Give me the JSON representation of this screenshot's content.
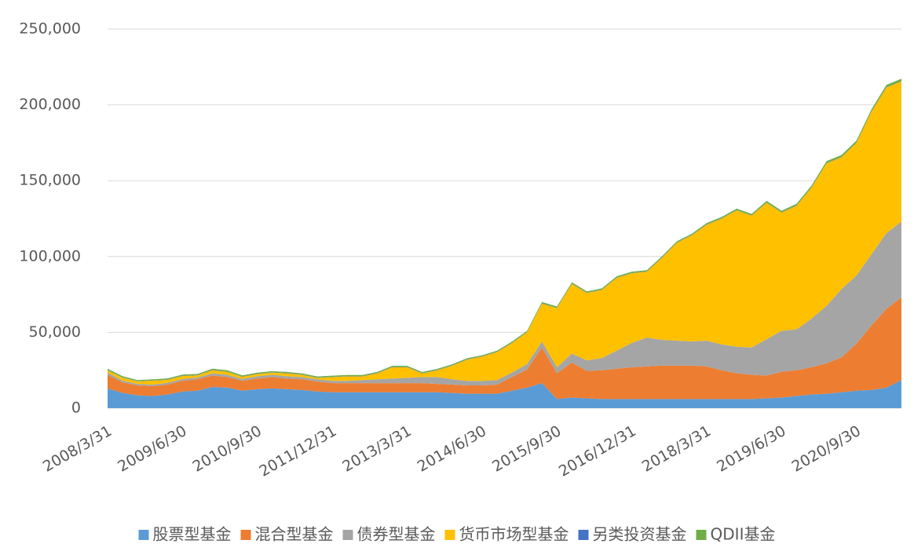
{
  "chart_data": {
    "type": "stacked_area",
    "categories": [
      "2008/3/31",
      null,
      null,
      null,
      null,
      "2009/6/30",
      null,
      null,
      null,
      null,
      "2010/9/30",
      null,
      null,
      null,
      null,
      "2011/12/31",
      null,
      null,
      null,
      null,
      "2013/3/31",
      null,
      null,
      null,
      null,
      "2014/6/30",
      null,
      null,
      null,
      null,
      "2015/9/30",
      null,
      null,
      null,
      null,
      "2016/12/31",
      null,
      null,
      null,
      null,
      "2018/3/31",
      null,
      null,
      null,
      null,
      "2019/6/30",
      null,
      null,
      null,
      null,
      "2020/9/30",
      null,
      null,
      null
    ],
    "series": [
      {
        "name": "股票型基金",
        "color": "#5b9bd5",
        "values": [
          13000,
          10000,
          8500,
          8000,
          9000,
          11000,
          11500,
          14000,
          13500,
          11500,
          12500,
          13000,
          12500,
          12000,
          11000,
          10500,
          10500,
          10500,
          10500,
          10500,
          10500,
          10500,
          10500,
          10000,
          9500,
          9500,
          9500,
          11500,
          13500,
          16500,
          6000,
          7000,
          6500,
          6000,
          6000,
          6000,
          6000,
          6000,
          6000,
          6000,
          6000,
          6000,
          6000,
          6000,
          6500,
          7000,
          8000,
          9000,
          9500,
          10500,
          11500,
          12000,
          13500,
          18500
        ]
      },
      {
        "name": "混合型基金",
        "color": "#ed7d31",
        "values": [
          9000,
          7000,
          6500,
          6500,
          6500,
          7000,
          7500,
          7500,
          7000,
          6500,
          7000,
          7500,
          7000,
          7000,
          6500,
          6000,
          6000,
          6000,
          6000,
          6000,
          6000,
          6000,
          5500,
          5500,
          5500,
          5500,
          6000,
          9000,
          12000,
          23500,
          17000,
          23000,
          18000,
          19000,
          20000,
          21000,
          21500,
          22000,
          22000,
          22000,
          21500,
          19000,
          17000,
          16000,
          15000,
          17000,
          17000,
          18000,
          20000,
          23000,
          31000,
          42500,
          52000,
          54500
        ]
      },
      {
        "name": "债券型基金",
        "color": "#a5a5a5",
        "values": [
          1500,
          1200,
          1000,
          1000,
          1200,
          1200,
          1200,
          1500,
          1500,
          1200,
          1500,
          1500,
          1500,
          1500,
          1500,
          1500,
          1500,
          2000,
          2500,
          3000,
          3500,
          4000,
          4500,
          3500,
          3000,
          3000,
          3000,
          3000,
          3500,
          4000,
          4000,
          6000,
          7000,
          8000,
          12000,
          16000,
          19000,
          17000,
          16500,
          16000,
          17000,
          17000,
          17500,
          18000,
          24000,
          27000,
          27000,
          32000,
          38000,
          45000,
          45000,
          47000,
          50000,
          50000
        ]
      },
      {
        "name": "货币市场型基金",
        "color": "#ffc000",
        "values": [
          1500,
          2000,
          1700,
          2700,
          2000,
          2000,
          1500,
          2000,
          2000,
          1500,
          1500,
          1500,
          2000,
          1500,
          1000,
          2500,
          3000,
          2500,
          4000,
          7500,
          7000,
          2500,
          4500,
          9000,
          14000,
          16000,
          18500,
          19500,
          21000,
          25000,
          39000,
          46000,
          44500,
          45000,
          48000,
          46000,
          43500,
          54000,
          64500,
          70000,
          76500,
          83000,
          90000,
          87000,
          90000,
          78000,
          81500,
          86500,
          94000,
          87000,
          87500,
          94000,
          96000,
          92500
        ]
      },
      {
        "name": "另类投资基金",
        "color": "#4472c4",
        "values": [
          200,
          200,
          200,
          200,
          200,
          200,
          200,
          200,
          200,
          200,
          200,
          200,
          200,
          200,
          200,
          200,
          200,
          200,
          200,
          200,
          200,
          200,
          200,
          200,
          200,
          200,
          200,
          200,
          200,
          200,
          200,
          200,
          200,
          200,
          200,
          200,
          200,
          200,
          200,
          200,
          200,
          200,
          200,
          200,
          200,
          200,
          200,
          200,
          200,
          200,
          200,
          200,
          200,
          200
        ]
      },
      {
        "name": "QDII基金",
        "color": "#70ad47",
        "values": [
          800,
          700,
          600,
          600,
          700,
          700,
          700,
          800,
          800,
          700,
          700,
          700,
          700,
          700,
          700,
          700,
          700,
          700,
          700,
          700,
          700,
          700,
          700,
          700,
          700,
          700,
          700,
          700,
          700,
          800,
          800,
          800,
          800,
          800,
          800,
          800,
          800,
          800,
          800,
          800,
          900,
          900,
          900,
          900,
          1000,
          1000,
          1100,
          1100,
          1200,
          1200,
          1300,
          1400,
          1500,
          1500
        ]
      }
    ],
    "ylim": [
      0,
      250000
    ],
    "yticks": [
      0,
      {
        "value": 50000,
        "label": "50,000"
      },
      {
        "value": 100000,
        "label": "100,000"
      },
      {
        "value": 150000,
        "label": "150,000"
      },
      {
        "value": 200000,
        "label": "200,000"
      },
      {
        "value": 250000,
        "label": "250,000"
      }
    ],
    "grid": true,
    "legend": "bottom"
  }
}
